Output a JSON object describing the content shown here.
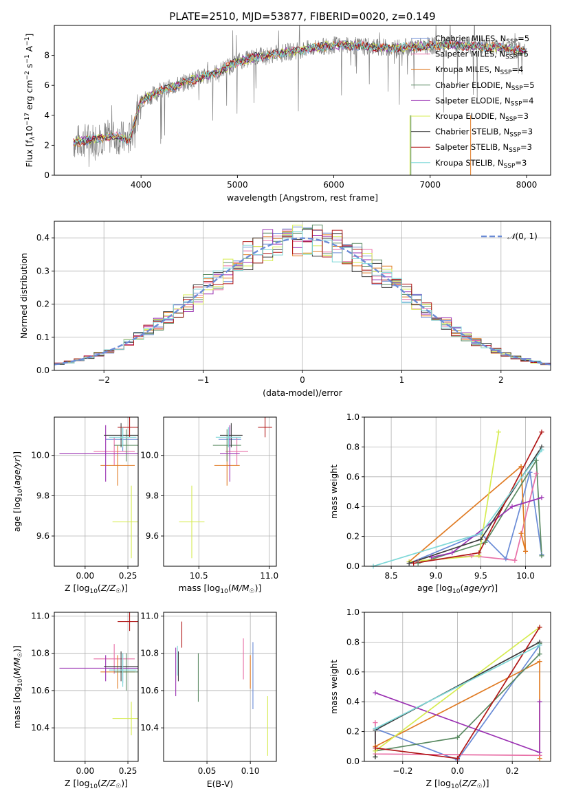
{
  "figure": {
    "title": "PLATE=2510, MJD=53877, FIBERID=0020, z=0.149"
  },
  "colors": {
    "Chabrier MILES": "#6a8bd6",
    "Salpeter MILES": "#e86fa6",
    "Kroupa MILES": "#e07a22",
    "Chabrier ELODIE": "#5a8a62",
    "Salpeter ELODIE": "#9a30b2",
    "Kroupa ELODIE": "#d6ec50",
    "Chabrier STELIB": "#3c3c3c",
    "Salpeter STELIB": "#b01616",
    "Kroupa STELIB": "#7ed8d8",
    "data": "#808080",
    "gaussian": "#6a8bd6"
  },
  "chart_data": [
    {
      "id": "spectrum",
      "type": "line",
      "xlabel": "wavelength [Angstrom, rest frame]",
      "ylabel": "Flux [f_λ10^-17 erg cm^-2 s^-1 A^-1]",
      "xlim": [
        3100,
        8250
      ],
      "ylim": [
        0,
        10
      ],
      "xticks": [
        4000,
        5000,
        6000,
        7000,
        8000
      ],
      "yticks": [
        0,
        2,
        4,
        6,
        8
      ],
      "grid": false,
      "legend_position": "top-right",
      "legend": [
        "Chabrier MILES, N_SSP=5",
        "Salpeter MILES, N_SSP=5",
        "Kroupa MILES, N_SSP=4",
        "Chabrier ELODIE, N_SSP=5",
        "Salpeter ELODIE, N_SSP=4",
        "Kroupa ELODIE, N_SSP=3",
        "Chabrier STELIB, N_SSP=3",
        "Salpeter STELIB, N_SSP=3",
        "Kroupa STELIB, N_SSP=3"
      ],
      "continuum_x": [
        3300,
        3500,
        3700,
        3800,
        3870,
        3900,
        4000,
        4200,
        4500,
        4800,
        5000,
        5200,
        5500,
        5800,
        6000,
        6300,
        6600,
        6900,
        7200,
        7500,
        7800,
        8000
      ],
      "continuum_y": [
        2.2,
        2.4,
        2.6,
        2.5,
        2.3,
        2.8,
        5.0,
        5.6,
        6.3,
        6.9,
        7.6,
        7.9,
        8.2,
        8.5,
        8.7,
        8.6,
        8.5,
        8.6,
        8.7,
        8.6,
        8.5,
        8.2
      ]
    },
    {
      "id": "residuals",
      "type": "histogram",
      "xlabel": "(data-model)/error",
      "ylabel": "Normed distribution",
      "xlim": [
        -2.5,
        2.5
      ],
      "ylim": [
        0,
        0.45
      ],
      "xticks": [
        -2,
        -1,
        0,
        1,
        2
      ],
      "yticks": [
        0.0,
        0.1,
        0.2,
        0.3,
        0.4
      ],
      "grid": true,
      "legend_position": "top-right",
      "legend": [
        "𝒩(0,1)"
      ],
      "bin_width": 0.1
    },
    {
      "id": "age-vs-Z",
      "type": "scatter",
      "xlabel": "Z [log10(Z/Z☉)]",
      "ylabel": "age  [log10(age/yr)]",
      "xlim": [
        -0.18,
        0.31
      ],
      "ylim": [
        9.45,
        10.19
      ],
      "xticks": [
        0.0,
        0.25
      ],
      "yticks": [
        9.6,
        9.8,
        10.0
      ],
      "grid": true,
      "points": [
        {
          "model": "Chabrier MILES",
          "x": 0.22,
          "xerr": 0.1,
          "y": 10.08,
          "yerr": 0.06
        },
        {
          "model": "Salpeter MILES",
          "x": 0.17,
          "xerr": 0.12,
          "y": 10.02,
          "yerr": 0.07
        },
        {
          "model": "Kroupa MILES",
          "x": 0.19,
          "xerr": 0.1,
          "y": 9.95,
          "yerr": 0.1
        },
        {
          "model": "Chabrier ELODIE",
          "x": 0.24,
          "xerr": 0.07,
          "y": 10.05,
          "yerr": 0.08
        },
        {
          "model": "Salpeter ELODIE",
          "x": 0.12,
          "xerr": 0.27,
          "y": 10.01,
          "yerr": 0.14
        },
        {
          "model": "Kroupa ELODIE",
          "x": 0.27,
          "xerr": 0.11,
          "y": 9.67,
          "yerr": 0.18
        },
        {
          "model": "Chabrier STELIB",
          "x": 0.21,
          "xerr": 0.1,
          "y": 10.1,
          "yerr": 0.06
        },
        {
          "model": "Salpeter STELIB",
          "x": 0.26,
          "xerr": 0.07,
          "y": 10.14,
          "yerr": 0.05
        },
        {
          "model": "Kroupa STELIB",
          "x": 0.22,
          "xerr": 0.08,
          "y": 10.09,
          "yerr": 0.05
        }
      ]
    },
    {
      "id": "age-vs-mass",
      "type": "scatter",
      "xlabel": "mass [log10(M/M☉)]",
      "ylabel": "",
      "xlim": [
        10.25,
        11.05
      ],
      "ylim": [
        9.45,
        10.19
      ],
      "xticks": [
        10.5,
        11.0
      ],
      "yticks": [
        9.6,
        9.8,
        10.0
      ],
      "grid": true,
      "points": [
        {
          "model": "Chabrier MILES",
          "x": 10.72,
          "xerr": 0.08,
          "y": 10.08,
          "yerr": 0.06
        },
        {
          "model": "Salpeter MILES",
          "x": 10.77,
          "xerr": 0.08,
          "y": 10.02,
          "yerr": 0.07
        },
        {
          "model": "Kroupa MILES",
          "x": 10.7,
          "xerr": 0.09,
          "y": 9.95,
          "yerr": 0.1
        },
        {
          "model": "Chabrier ELODIE",
          "x": 10.7,
          "xerr": 0.1,
          "y": 10.05,
          "yerr": 0.08
        },
        {
          "model": "Salpeter ELODIE",
          "x": 10.72,
          "xerr": 0.07,
          "y": 10.01,
          "yerr": 0.14
        },
        {
          "model": "Kroupa ELODIE",
          "x": 10.45,
          "xerr": 0.09,
          "y": 9.67,
          "yerr": 0.18
        },
        {
          "model": "Chabrier STELIB",
          "x": 10.73,
          "xerr": 0.08,
          "y": 10.1,
          "yerr": 0.06
        },
        {
          "model": "Salpeter STELIB",
          "x": 10.97,
          "xerr": 0.05,
          "y": 10.14,
          "yerr": 0.05
        },
        {
          "model": "Kroupa STELIB",
          "x": 10.71,
          "xerr": 0.09,
          "y": 10.09,
          "yerr": 0.05
        }
      ]
    },
    {
      "id": "weight-vs-age",
      "type": "line",
      "xlabel": "age  [log10(age/yr)]",
      "ylabel": "mass weight",
      "xlim": [
        8.2,
        10.28
      ],
      "ylim": [
        0,
        1
      ],
      "xticks": [
        8.5,
        9.0,
        9.5,
        10.0
      ],
      "yticks": [
        0.0,
        0.2,
        0.4,
        0.6,
        0.8,
        1.0
      ],
      "grid": true,
      "series": [
        {
          "name": "Chabrier MILES",
          "x": [
            8.7,
            9.5,
            9.78,
            10.05,
            10.18
          ],
          "y": [
            0.02,
            0.22,
            0.05,
            0.63,
            0.08
          ]
        },
        {
          "name": "Salpeter MILES",
          "x": [
            8.8,
            9.4,
            9.88,
            10.12
          ],
          "y": [
            0.03,
            0.07,
            0.04,
            0.62
          ]
        },
        {
          "name": "Kroupa MILES",
          "x": [
            8.7,
            9.95,
            10.0,
            9.95
          ],
          "y": [
            0.03,
            0.67,
            0.1,
            0.22
          ]
        },
        {
          "name": "Chabrier ELODIE",
          "x": [
            8.8,
            9.55,
            10.12,
            10.18
          ],
          "y": [
            0.02,
            0.16,
            0.71,
            0.07
          ]
        },
        {
          "name": "Salpeter ELODIE",
          "x": [
            8.95,
            9.18,
            9.85,
            10.18
          ],
          "y": [
            0.06,
            0.09,
            0.4,
            0.46
          ]
        },
        {
          "name": "Kroupa ELODIE",
          "x": [
            8.7,
            9.48,
            9.7
          ],
          "y": [
            0.03,
            0.07,
            0.9
          ]
        },
        {
          "name": "Chabrier STELIB",
          "x": [
            8.7,
            9.5,
            10.18
          ],
          "y": [
            0.02,
            0.18,
            0.8
          ]
        },
        {
          "name": "Salpeter STELIB",
          "x": [
            8.75,
            9.48,
            10.18
          ],
          "y": [
            0.02,
            0.09,
            0.9
          ]
        },
        {
          "name": "Kroupa STELIB",
          "x": [
            8.3,
            9.5,
            10.18
          ],
          "y": [
            0.0,
            0.22,
            0.78
          ]
        }
      ]
    },
    {
      "id": "mass-vs-Z",
      "type": "scatter",
      "xlabel": "Z [log10(Z/Z☉)]",
      "ylabel": "mass [log10(M/M☉)]",
      "xlim": [
        -0.18,
        0.31
      ],
      "ylim": [
        10.22,
        11.02
      ],
      "xticks": [
        0.0,
        0.25
      ],
      "yticks": [
        10.4,
        10.6,
        10.8,
        11.0
      ],
      "grid": true,
      "points": [
        {
          "model": "Chabrier MILES",
          "x": 0.22,
          "xerr": 0.1,
          "y": 10.72,
          "yerr": 0.08
        },
        {
          "model": "Salpeter MILES",
          "x": 0.17,
          "xerr": 0.12,
          "y": 10.77,
          "yerr": 0.08
        },
        {
          "model": "Kroupa MILES",
          "x": 0.19,
          "xerr": 0.1,
          "y": 10.7,
          "yerr": 0.09
        },
        {
          "model": "Chabrier ELODIE",
          "x": 0.24,
          "xerr": 0.07,
          "y": 10.7,
          "yerr": 0.1
        },
        {
          "model": "Salpeter ELODIE",
          "x": 0.12,
          "xerr": 0.27,
          "y": 10.72,
          "yerr": 0.07
        },
        {
          "model": "Kroupa ELODIE",
          "x": 0.27,
          "xerr": 0.11,
          "y": 10.45,
          "yerr": 0.09
        },
        {
          "model": "Chabrier STELIB",
          "x": 0.21,
          "xerr": 0.1,
          "y": 10.73,
          "yerr": 0.08
        },
        {
          "model": "Salpeter STELIB",
          "x": 0.26,
          "xerr": 0.07,
          "y": 10.97,
          "yerr": 0.05
        },
        {
          "model": "Kroupa STELIB",
          "x": 0.22,
          "xerr": 0.08,
          "y": 10.71,
          "yerr": 0.09
        }
      ]
    },
    {
      "id": "mass-vs-ebv",
      "type": "scatter",
      "xlabel": "E(B-V)",
      "ylabel": "",
      "xlim": [
        0.0,
        0.13
      ],
      "ylim": [
        10.22,
        11.02
      ],
      "xticks": [
        0.05,
        0.1
      ],
      "yticks": [
        10.4,
        10.6,
        10.8,
        11.0
      ],
      "grid": true,
      "points": [
        {
          "model": "Chabrier MILES",
          "x": 0.103,
          "xerr": 0,
          "y": 10.68,
          "yerr": 0.18
        },
        {
          "model": "Salpeter MILES",
          "x": 0.092,
          "xerr": 0,
          "y": 10.77,
          "yerr": 0.11
        },
        {
          "model": "Kroupa MILES",
          "x": 0.1,
          "xerr": 0,
          "y": 10.7,
          "yerr": 0.09
        },
        {
          "model": "Chabrier ELODIE",
          "x": 0.04,
          "xerr": 0,
          "y": 10.67,
          "yerr": 0.13
        },
        {
          "model": "Salpeter ELODIE",
          "x": 0.014,
          "xerr": 0,
          "y": 10.7,
          "yerr": 0.13
        },
        {
          "model": "Kroupa ELODIE",
          "x": 0.12,
          "xerr": 0,
          "y": 10.41,
          "yerr": 0.16
        },
        {
          "model": "Chabrier STELIB",
          "x": 0.017,
          "xerr": 0,
          "y": 10.73,
          "yerr": 0.08
        },
        {
          "model": "Salpeter STELIB",
          "x": 0.021,
          "xerr": 0,
          "y": 10.9,
          "yerr": 0.07
        },
        {
          "model": "Kroupa STELIB",
          "x": 0.016,
          "xerr": 0,
          "y": 10.76,
          "yerr": 0.08
        }
      ]
    },
    {
      "id": "weight-vs-Z",
      "type": "line",
      "xlabel": "Z [log10(Z/Z☉)]",
      "ylabel": "mass weight",
      "xlim": [
        -0.34,
        0.34
      ],
      "ylim": [
        0,
        1
      ],
      "xticks": [
        -0.2,
        0.0,
        0.2
      ],
      "yticks": [
        0.0,
        0.2,
        0.4,
        0.6,
        0.8,
        1.0
      ],
      "grid": true,
      "series": [
        {
          "name": "Chabrier MILES",
          "x": [
            -0.3,
            0.0,
            0.3
          ],
          "y": [
            0.22,
            0.01,
            0.78
          ]
        },
        {
          "name": "Salpeter MILES",
          "x": [
            -0.3,
            -0.3,
            0.3
          ],
          "y": [
            0.26,
            0.05,
            0.04
          ]
        },
        {
          "name": "Kroupa MILES",
          "x": [
            -0.3,
            0.3,
            0.3
          ],
          "y": [
            0.1,
            0.67,
            0.02
          ]
        },
        {
          "name": "Chabrier ELODIE",
          "x": [
            -0.3,
            -0.3,
            0.0,
            0.3,
            0.3
          ],
          "y": [
            0.03,
            0.07,
            0.16,
            0.72,
            0.79
          ]
        },
        {
          "name": "Salpeter ELODIE",
          "x": [
            -0.3,
            0.3,
            0.3
          ],
          "y": [
            0.46,
            0.06,
            0.4
          ]
        },
        {
          "name": "Kroupa ELODIE",
          "x": [
            -0.3,
            0.3
          ],
          "y": [
            0.07,
            0.9
          ]
        },
        {
          "name": "Chabrier STELIB",
          "x": [
            -0.3,
            -0.3,
            0.3
          ],
          "y": [
            0.03,
            0.21,
            0.8
          ]
        },
        {
          "name": "Salpeter STELIB",
          "x": [
            -0.3,
            0.0,
            0.3
          ],
          "y": [
            0.09,
            0.02,
            0.9
          ]
        },
        {
          "name": "Kroupa STELIB",
          "x": [
            -0.3,
            0.3
          ],
          "y": [
            0.22,
            0.78
          ]
        }
      ]
    }
  ]
}
